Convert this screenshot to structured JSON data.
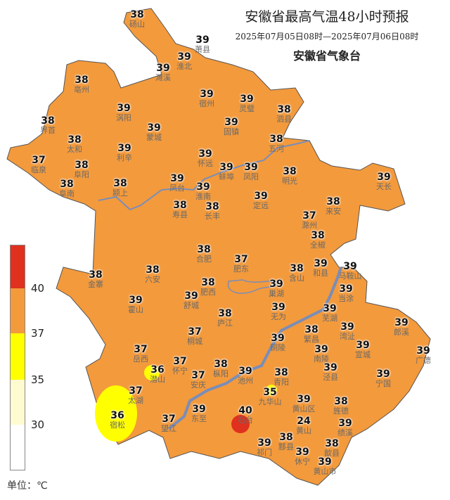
{
  "header": {
    "title": "安徽省最高气温48小时预报",
    "period": "2025年07月05日08时—2025年07月06日08时",
    "issuer": "安徽省气象台"
  },
  "legend": {
    "labels": [
      "40",
      "37",
      "35",
      "30"
    ],
    "unit": "单位：℃",
    "colors": {
      "above40": "#e0301e",
      "37to40": "#f39a3c",
      "35to37": "#ffff00",
      "30to35": "#fffbd0",
      "below30": "#ffffff"
    }
  },
  "stations": [
    {
      "v": "38",
      "n": "砀山"
    },
    {
      "v": "39",
      "n": "萧县"
    },
    {
      "v": "39",
      "n": "淮北"
    },
    {
      "v": "39",
      "n": "濉溪"
    },
    {
      "v": "38",
      "n": "亳州"
    },
    {
      "v": "39",
      "n": "涡阳"
    },
    {
      "v": "39",
      "n": "宿州"
    },
    {
      "v": "39",
      "n": "灵璧"
    },
    {
      "v": "38",
      "n": "泗县"
    },
    {
      "v": "38",
      "n": "界首"
    },
    {
      "v": "39",
      "n": "蒙城"
    },
    {
      "v": "39",
      "n": "固镇"
    },
    {
      "v": "38",
      "n": "五河"
    },
    {
      "v": "38",
      "n": "太和"
    },
    {
      "v": "39",
      "n": "利辛"
    },
    {
      "v": "39",
      "n": "怀远"
    },
    {
      "v": "39",
      "n": "蚌埠"
    },
    {
      "v": "39",
      "n": "凤阳"
    },
    {
      "v": "38",
      "n": "明光"
    },
    {
      "v": "37",
      "n": "临泉"
    },
    {
      "v": "38",
      "n": "阜阳"
    },
    {
      "v": "38",
      "n": "阜南"
    },
    {
      "v": "38",
      "n": "颍上"
    },
    {
      "v": "39",
      "n": "凤台"
    },
    {
      "v": "39",
      "n": "淮南"
    },
    {
      "v": "38",
      "n": "寿县"
    },
    {
      "v": "38",
      "n": "长丰"
    },
    {
      "v": "39",
      "n": "定远"
    },
    {
      "v": "39",
      "n": "天长"
    },
    {
      "v": "37",
      "n": "滁州"
    },
    {
      "v": "38",
      "n": "来安"
    },
    {
      "v": "38",
      "n": "全椒"
    },
    {
      "v": "38",
      "n": "合肥"
    },
    {
      "v": "37",
      "n": "肥东"
    },
    {
      "v": "38",
      "n": "金寨"
    },
    {
      "v": "38",
      "n": "六安"
    },
    {
      "v": "38",
      "n": "肥西"
    },
    {
      "v": "39",
      "n": "舒城"
    },
    {
      "v": "39",
      "n": "霍山"
    },
    {
      "v": "38",
      "n": "含山"
    },
    {
      "v": "39",
      "n": "和县"
    },
    {
      "v": "39",
      "n": "马鞍山"
    },
    {
      "v": "39",
      "n": "当涂"
    },
    {
      "v": "39",
      "n": "巢湖"
    },
    {
      "v": "39",
      "n": "无为"
    },
    {
      "v": "38",
      "n": "庐江"
    },
    {
      "v": "39",
      "n": "芜湖"
    },
    {
      "v": "37",
      "n": "桐城"
    },
    {
      "v": "39",
      "n": "铜陵"
    },
    {
      "v": "39",
      "n": "湾沚"
    },
    {
      "v": "39",
      "n": "宣城"
    },
    {
      "v": "39",
      "n": "郎溪"
    },
    {
      "v": "39",
      "n": "广德"
    },
    {
      "v": "38",
      "n": "繁昌"
    },
    {
      "v": "39",
      "n": "南陵"
    },
    {
      "v": "39",
      "n": "泾县"
    },
    {
      "v": "39",
      "n": "宁国"
    },
    {
      "v": "37",
      "n": "岳西"
    },
    {
      "v": "36",
      "n": "潜山"
    },
    {
      "v": "37",
      "n": "怀宁"
    },
    {
      "v": "37",
      "n": "安庆"
    },
    {
      "v": "38",
      "n": "枞阳"
    },
    {
      "v": "39",
      "n": "池州"
    },
    {
      "v": "38",
      "n": "青阳"
    },
    {
      "v": "35",
      "n": "九华山"
    },
    {
      "v": "37",
      "n": "太湖"
    },
    {
      "v": "36",
      "n": "宿松"
    },
    {
      "v": "37",
      "n": "望江"
    },
    {
      "v": "39",
      "n": "东至"
    },
    {
      "v": "40",
      "n": "石台"
    },
    {
      "v": "39",
      "n": "黄山区"
    },
    {
      "v": "24",
      "n": "黄山"
    },
    {
      "v": "38",
      "n": "旌德"
    },
    {
      "v": "39",
      "n": "绩溪"
    },
    {
      "v": "39",
      "n": "祁门"
    },
    {
      "v": "38",
      "n": "黟县"
    },
    {
      "v": "38",
      "n": "歙县"
    },
    {
      "v": "39",
      "n": "休宁"
    },
    {
      "v": "39",
      "n": "黄山市"
    }
  ]
}
